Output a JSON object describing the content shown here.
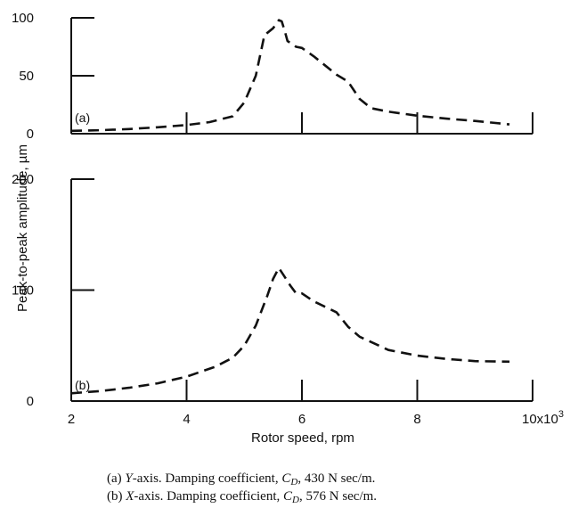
{
  "chart_data": {
    "type": "line",
    "xlabel": "Rotor speed, rpm",
    "ylabel": "Peak-to-peak amplitude, µm",
    "x_tick_labels": [
      "2",
      "4",
      "6",
      "8",
      "10x10"
    ],
    "x_multiplier_exponent": "3",
    "xlim": [
      2,
      10
    ],
    "x_ticks": [
      2,
      4,
      6,
      8,
      10
    ],
    "grid": false,
    "panels": [
      {
        "label": "(a)",
        "ylim": [
          0,
          100
        ],
        "y_ticks": [
          0,
          50,
          100
        ],
        "y_tick_labels": [
          "0",
          "50",
          "100"
        ],
        "series": [
          {
            "style": "dashed",
            "x": [
              2.0,
              2.5,
              3.0,
              3.5,
              4.0,
              4.4,
              4.8,
              5.0,
              5.2,
              5.35,
              5.5,
              5.6,
              5.65,
              5.7,
              5.75,
              5.9,
              6.0,
              6.2,
              6.4,
              6.6,
              6.8,
              7.0,
              7.2,
              7.5,
              8.0,
              8.5,
              9.0,
              9.6
            ],
            "y": [
              2.5,
              3.0,
              4.0,
              5.5,
              7.5,
              10.0,
              15.0,
              27.0,
              50.0,
              85.0,
              91.0,
              98.0,
              97.0,
              89.0,
              80.0,
              75.0,
              74.0,
              67.0,
              59.0,
              51.0,
              45.0,
              30.0,
              22.0,
              19.0,
              15.5,
              13.0,
              11.0,
              8.0
            ]
          }
        ]
      },
      {
        "label": "(b)",
        "ylim": [
          0,
          200
        ],
        "y_ticks": [
          0,
          100,
          200
        ],
        "y_tick_labels": [
          "0",
          "100",
          "200"
        ],
        "series": [
          {
            "style": "dashed",
            "x": [
              2.0,
              2.5,
              3.0,
              3.5,
              4.0,
              4.5,
              4.8,
              5.0,
              5.2,
              5.4,
              5.5,
              5.6,
              5.7,
              5.8,
              5.9,
              6.0,
              6.2,
              6.4,
              6.6,
              6.8,
              7.0,
              7.5,
              8.0,
              8.5,
              9.0,
              9.6
            ],
            "y": [
              7.0,
              9.0,
              12.0,
              16.0,
              22.0,
              31.0,
              39.0,
              50.0,
              68.0,
              95.0,
              110.0,
              120.0,
              112.0,
              104.0,
              97.0,
              97.0,
              90.0,
              85.0,
              80.0,
              67.0,
              58.0,
              46.0,
              41.0,
              38.0,
              36.0,
              35.5
            ]
          }
        ]
      }
    ]
  },
  "caption": {
    "a": {
      "prefix": "(a) ",
      "axis": "Y",
      "body": "-axis. Damping coefficient, ",
      "var": "C",
      "sub": "D",
      "value": ", 430 N sec/m."
    },
    "b": {
      "prefix": "(b) ",
      "axis": "X",
      "body": "-axis. Damping coefficient, ",
      "var": "C",
      "sub": "D",
      "value": ", 576 N sec/m."
    }
  }
}
